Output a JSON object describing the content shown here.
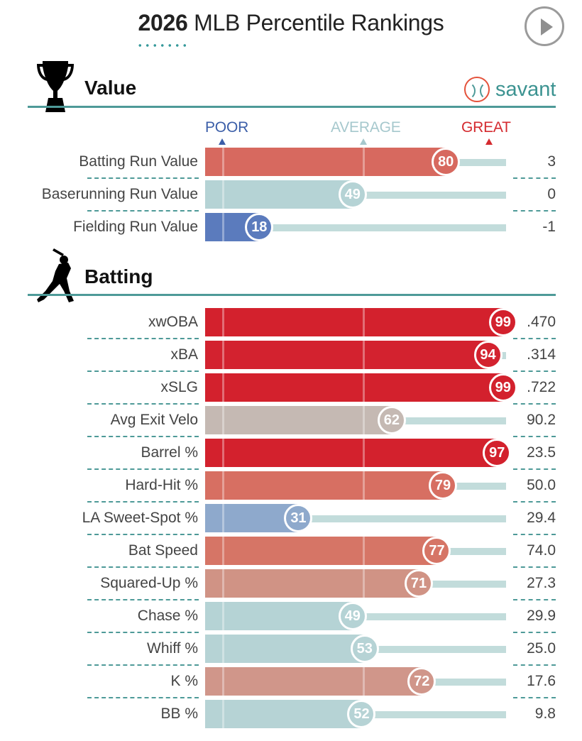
{
  "page": {
    "title_year": "2026",
    "title_rest": " MLB Percentile Rankings"
  },
  "brand": {
    "name": "savant",
    "icon": "baseball-icon"
  },
  "scale": {
    "poor": "POOR",
    "average": "AVERAGE",
    "great": "GREAT"
  },
  "colors": {
    "poor": "#3b5ea8",
    "average": "#a6c8cd",
    "great": "#d42a2f",
    "accent": "#4e9a98",
    "track": "#c2dcdb"
  },
  "icons": {
    "value": "trophy-icon",
    "batting": "batter-icon",
    "play": "play-icon"
  },
  "chart_data": {
    "type": "bar",
    "title": "2026 MLB Percentile Rankings",
    "xlim": [
      0,
      100
    ],
    "sections": [
      {
        "name": "Value",
        "metrics": [
          {
            "label": "Batting Run Value",
            "percentile": 80,
            "value": "3",
            "color": "#d7695f"
          },
          {
            "label": "Baserunning Run Value",
            "percentile": 49,
            "value": "0",
            "color": "#b5d3d5"
          },
          {
            "label": "Fielding Run Value",
            "percentile": 18,
            "value": "-1",
            "color": "#5b7bbd"
          }
        ]
      },
      {
        "name": "Batting",
        "metrics": [
          {
            "label": "xwOBA",
            "percentile": 99,
            "value": ".470",
            "color": "#d3212d"
          },
          {
            "label": "xBA",
            "percentile": 94,
            "value": ".314",
            "color": "#d3222f"
          },
          {
            "label": "xSLG",
            "percentile": 99,
            "value": ".722",
            "color": "#d3212d"
          },
          {
            "label": "Avg Exit Velo",
            "percentile": 62,
            "value": "90.2",
            "color": "#c5b9b3"
          },
          {
            "label": "Barrel %",
            "percentile": 97,
            "value": "23.5",
            "color": "#d3212d"
          },
          {
            "label": "Hard-Hit %",
            "percentile": 79,
            "value": "50.0",
            "color": "#d76f62"
          },
          {
            "label": "LA Sweet-Spot %",
            "percentile": 31,
            "value": "29.4",
            "color": "#8ea9cc"
          },
          {
            "label": "Bat Speed",
            "percentile": 77,
            "value": "74.0",
            "color": "#d67566"
          },
          {
            "label": "Squared-Up %",
            "percentile": 71,
            "value": "27.3",
            "color": "#d09385"
          },
          {
            "label": "Chase %",
            "percentile": 49,
            "value": "29.9",
            "color": "#b5d3d5"
          },
          {
            "label": "Whiff %",
            "percentile": 53,
            "value": "25.0",
            "color": "#b6d3d5"
          },
          {
            "label": "K %",
            "percentile": 72,
            "value": "17.6",
            "color": "#d0968a"
          },
          {
            "label": "BB %",
            "percentile": 52,
            "value": "9.8",
            "color": "#b6d3d5"
          }
        ]
      }
    ]
  }
}
